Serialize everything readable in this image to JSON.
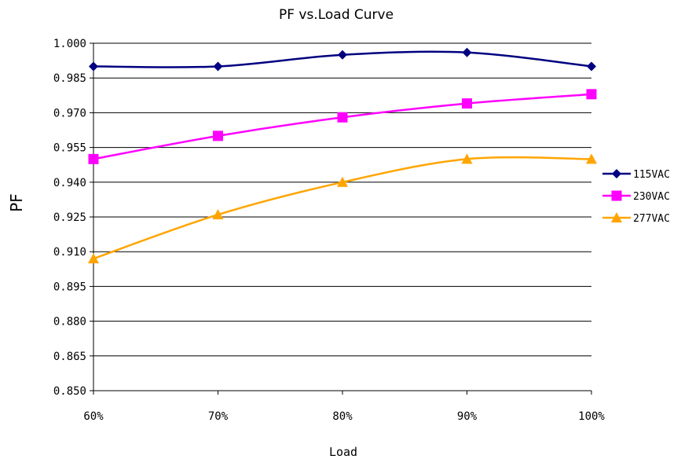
{
  "chart_data": {
    "type": "line",
    "title": "PF vs.Load Curve",
    "xlabel": "Load",
    "ylabel": "PF",
    "categories": [
      "60%",
      "70%",
      "80%",
      "90%",
      "100%"
    ],
    "ylim": [
      0.85,
      1.0
    ],
    "yticks": [
      "1.000",
      "0.985",
      "0.970",
      "0.955",
      "0.940",
      "0.925",
      "0.910",
      "0.895",
      "0.880",
      "0.865",
      "0.850"
    ],
    "grid": true,
    "legend_position": "right",
    "series": [
      {
        "name": "115VAC",
        "values": [
          0.99,
          0.99,
          0.995,
          0.996,
          0.99
        ],
        "color": "#000080",
        "marker": "diamond"
      },
      {
        "name": "230VAC",
        "values": [
          0.95,
          0.96,
          0.968,
          0.974,
          0.978
        ],
        "color": "#FF00FF",
        "marker": "square"
      },
      {
        "name": "277VAC",
        "values": [
          0.907,
          0.926,
          0.94,
          0.95,
          0.95
        ],
        "color": "#FFA500",
        "marker": "triangle"
      }
    ]
  }
}
